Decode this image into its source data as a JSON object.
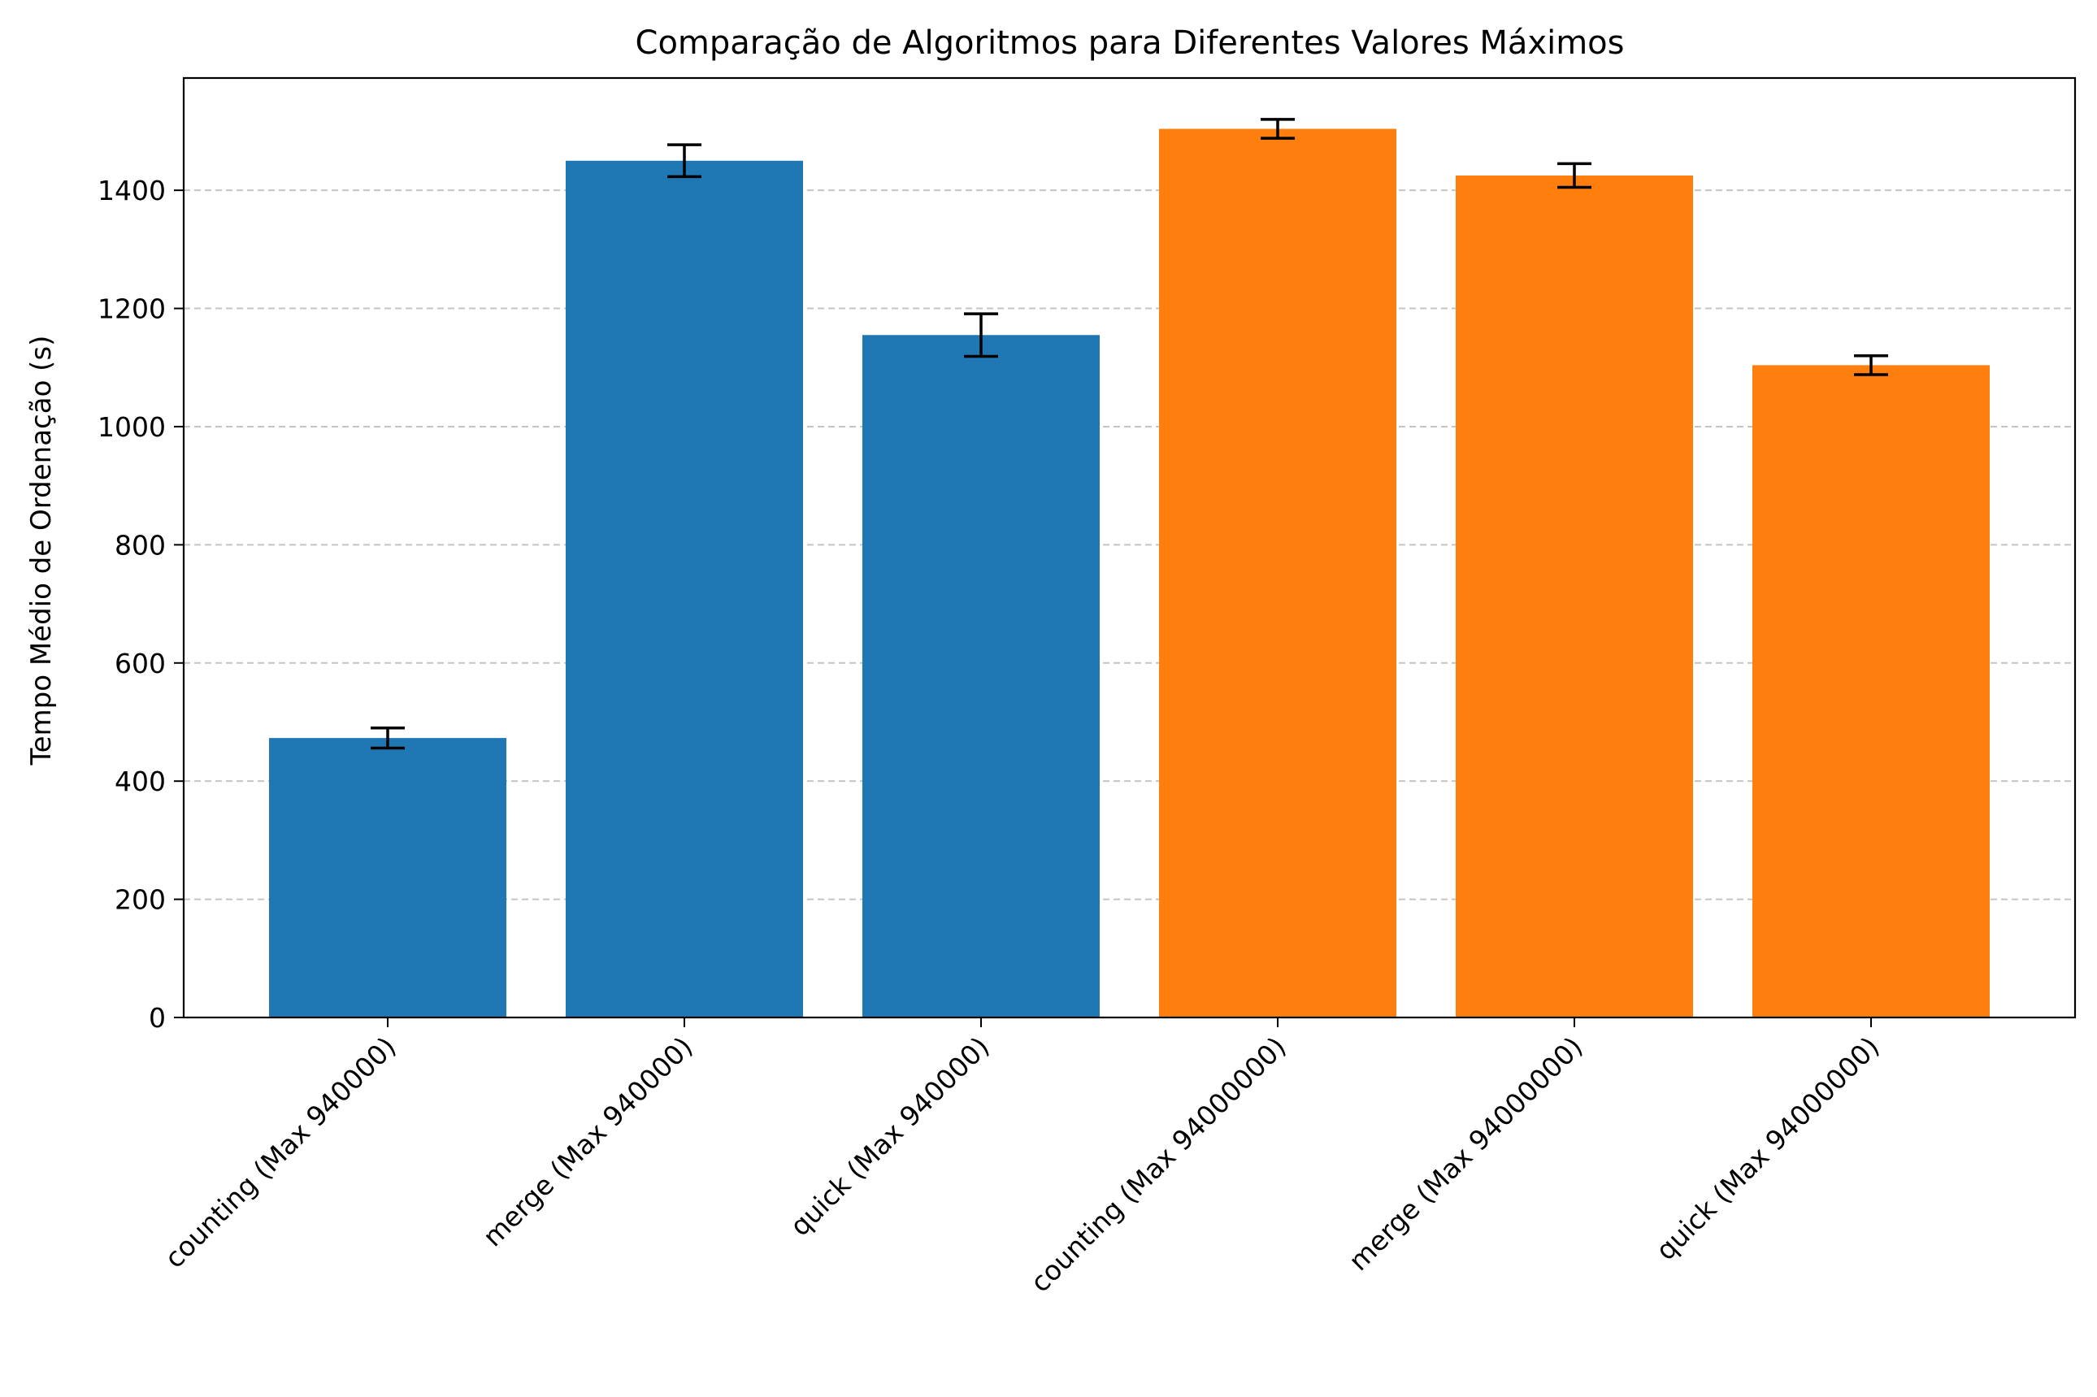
{
  "chart_data": {
    "type": "bar",
    "title": "Comparação de Algoritmos para Diferentes Valores Máximos",
    "xlabel": "",
    "ylabel": "Tempo Médio de Ordenação (s)",
    "ylim": [
      0,
      1590
    ],
    "yticks": [
      0,
      200,
      400,
      600,
      800,
      1000,
      1200,
      1400
    ],
    "grid": "y-dashed",
    "categories": [
      "counting (Max 940000)",
      "merge (Max 940000)",
      "quick (Max 940000)",
      "counting (Max 94000000)",
      "merge (Max 94000000)",
      "quick (Max 94000000)"
    ],
    "values": [
      473,
      1450,
      1155,
      1504,
      1425,
      1104
    ],
    "errors": [
      17,
      27,
      36,
      16,
      20,
      16
    ],
    "colors": [
      "#1f77b4",
      "#1f77b4",
      "#1f77b4",
      "#ff7f0e",
      "#ff7f0e",
      "#ff7f0e"
    ]
  }
}
